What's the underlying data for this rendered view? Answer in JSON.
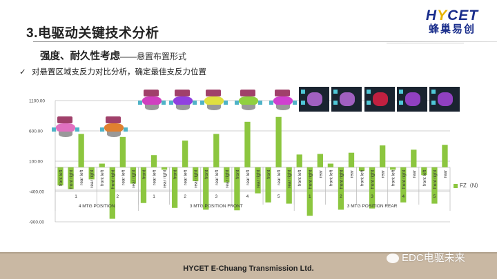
{
  "slide": {
    "title": "3.电驱动关键技术分析",
    "subtitle_bold": "强度、耐久性考虑",
    "subtitle_dash": "——悬置布置形式",
    "bullet_check": "✓",
    "bullet_text": "对悬置区域支反力对比分析，确定最佳支反力位置"
  },
  "logo": {
    "en_prefix": "H",
    "en_v": "Y",
    "en_suffix": "CET",
    "cn": "蜂巢易创"
  },
  "footer": {
    "company": "HYCET E-Chuang Transmission Ltd.",
    "watermark": "EDC电驱未来"
  },
  "legend": {
    "label": "FZ（N）",
    "color": "#8cc63f"
  },
  "chart_data": {
    "type": "bar",
    "title": "",
    "xlabel": "",
    "ylabel": "",
    "ylim": [
      -900,
      1100
    ],
    "yticks": [
      "1100.00",
      "600.00",
      "100.00",
      "-400.00",
      "-900.00"
    ],
    "grid": true,
    "legend_position": "right",
    "series": [
      {
        "name": "FZ（N）",
        "color": "#8cc63f"
      }
    ],
    "groups": [
      {
        "level1": "4 MTG POSITION",
        "subgroups": [
          {
            "level2": "1",
            "categories": [
              "front left",
              "front right",
              "rear left",
              "rear right"
            ],
            "values": [
              -300,
              -360,
              550,
              -200
            ]
          },
          {
            "level2": "2",
            "categories": [
              "front left",
              "front right",
              "rear left",
              "rear right"
            ],
            "values": [
              60,
              -850,
              500,
              -270
            ]
          }
        ]
      },
      {
        "level1": "3 MTG POSITION FRONT",
        "subgroups": [
          {
            "level2": "1",
            "categories": [
              "front",
              "rear left",
              "rear right"
            ],
            "values": [
              -590,
              200,
              -40
            ]
          },
          {
            "level2": "2",
            "categories": [
              "front",
              "rear left",
              "rear right"
            ],
            "values": [
              -670,
              440,
              -230
            ]
          },
          {
            "level2": "3",
            "categories": [
              "front",
              "rear left",
              "rear right"
            ],
            "values": [
              -700,
              550,
              -250
            ]
          },
          {
            "level2": "4",
            "categories": [
              "front",
              "rear left",
              "rear right"
            ],
            "values": [
              -710,
              750,
              -430
            ]
          },
          {
            "level2": "5",
            "categories": [
              "front",
              "rear left",
              "rear right"
            ],
            "values": [
              -580,
              830,
              -600
            ]
          }
        ]
      },
      {
        "level1": "3 MTG POSITION REAR",
        "subgroups": [
          {
            "level2": "1",
            "categories": [
              "front left",
              "front right",
              "rear"
            ],
            "values": [
              210,
              -800,
              220
            ]
          },
          {
            "level2": "2",
            "categories": [
              "front left",
              "front right",
              "rear"
            ],
            "values": [
              60,
              -700,
              240
            ]
          },
          {
            "level2": "3",
            "categories": [
              "front left",
              "front right",
              "rear"
            ],
            "values": [
              -60,
              -680,
              360
            ]
          },
          {
            "level2": "4",
            "categories": [
              "front left",
              "front right",
              "rear"
            ],
            "values": [
              -40,
              -580,
              290
            ]
          },
          {
            "level2": "5",
            "categories": [
              "front left",
              "front right",
              "rear"
            ],
            "values": [
              -130,
              -600,
              370
            ]
          }
        ]
      }
    ]
  }
}
